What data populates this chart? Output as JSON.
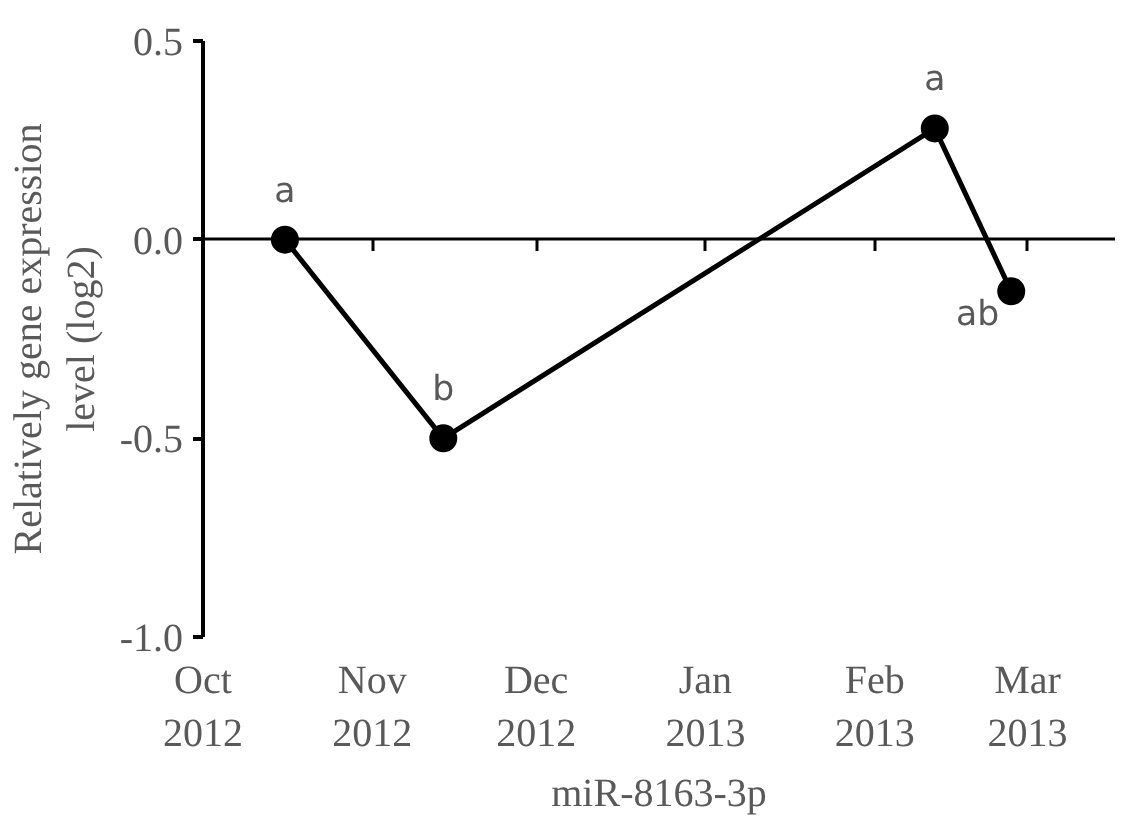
{
  "chart_data": {
    "type": "line",
    "xlabel": "miR-8163-3p",
    "ylabel": "Relatively gene expression\nlevel (log2)",
    "x": [
      "2012-10-16",
      "2012-11-14",
      "2013-02-12",
      "2013-02-26"
    ],
    "series": [
      {
        "color": "#000000",
        "values": [
          0.0,
          -0.5,
          0.28,
          -0.13
        ]
      }
    ],
    "xlim": [
      "2012-10-01",
      "2013-03-17"
    ],
    "xticks": [
      {
        "value": "2012-10-01",
        "label": "Oct\n2012"
      },
      {
        "value": "2012-11-01",
        "label": "Nov\n2012"
      },
      {
        "value": "2012-12-01",
        "label": "Dec\n2012"
      },
      {
        "value": "2013-01-01",
        "label": "Jan\n2013"
      },
      {
        "value": "2013-02-01",
        "label": "Feb\n2013"
      },
      {
        "value": "2013-03-01",
        "label": "Mar\n2013"
      }
    ],
    "ylim": [
      -1.0,
      0.5
    ],
    "yticks": [
      {
        "value": -1.0,
        "label": "-1.0"
      },
      {
        "value": -0.5,
        "label": "-0.5"
      },
      {
        "value": 0.0,
        "label": "0.0"
      },
      {
        "value": 0.5,
        "label": "0.5"
      }
    ],
    "annotations": [
      {
        "text": "a",
        "x": "2012-10-16",
        "y": 0.0
      },
      {
        "text": "b",
        "x": "2012-11-14",
        "y": -0.5
      },
      {
        "text": "a",
        "x": "2013-02-12",
        "y": 0.28
      },
      {
        "text": "ab",
        "x": "2013-02-26",
        "y": -0.13
      }
    ],
    "marker": "circle",
    "line_style": "solid"
  }
}
